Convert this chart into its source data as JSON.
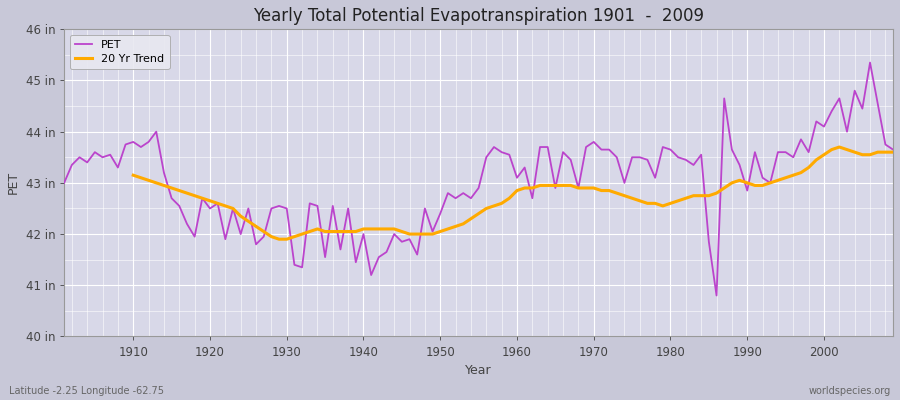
{
  "title": "Yearly Total Potential Evapotranspiration 1901  -  2009",
  "xlabel": "Year",
  "ylabel": "PET",
  "footnote_left": "Latitude -2.25 Longitude -62.75",
  "footnote_right": "worldspecies.org",
  "ylim": [
    40,
    46
  ],
  "yticks": [
    40,
    41,
    42,
    43,
    44,
    45,
    46
  ],
  "ytick_labels": [
    "40 in",
    "41 in",
    "42 in",
    "43 in",
    "44 in",
    "45 in",
    "46 in"
  ],
  "xlim": [
    1901,
    2009
  ],
  "xticks": [
    1910,
    1920,
    1930,
    1940,
    1950,
    1960,
    1970,
    1980,
    1990,
    2000
  ],
  "pet_color": "#bb44cc",
  "trend_color": "#ffaa00",
  "fig_bg_color": "#c8c8d8",
  "plot_bg_color": "#d8d8e8",
  "grid_color": "#ffffff",
  "legend_bg": "#e8e8f0",
  "pet_linewidth": 1.3,
  "trend_linewidth": 2.2,
  "years": [
    1901,
    1902,
    1903,
    1904,
    1905,
    1906,
    1907,
    1908,
    1909,
    1910,
    1911,
    1912,
    1913,
    1914,
    1915,
    1916,
    1917,
    1918,
    1919,
    1920,
    1921,
    1922,
    1923,
    1924,
    1925,
    1926,
    1927,
    1928,
    1929,
    1930,
    1931,
    1932,
    1933,
    1934,
    1935,
    1936,
    1937,
    1938,
    1939,
    1940,
    1941,
    1942,
    1943,
    1944,
    1945,
    1946,
    1947,
    1948,
    1949,
    1950,
    1951,
    1952,
    1953,
    1954,
    1955,
    1956,
    1957,
    1958,
    1959,
    1960,
    1961,
    1962,
    1963,
    1964,
    1965,
    1966,
    1967,
    1968,
    1969,
    1970,
    1971,
    1972,
    1973,
    1974,
    1975,
    1976,
    1977,
    1978,
    1979,
    1980,
    1981,
    1982,
    1983,
    1984,
    1985,
    1986,
    1987,
    1988,
    1989,
    1990,
    1991,
    1992,
    1993,
    1994,
    1995,
    1996,
    1997,
    1998,
    1999,
    2000,
    2001,
    2002,
    2003,
    2004,
    2005,
    2006,
    2007,
    2008,
    2009
  ],
  "pet_values": [
    43.0,
    43.35,
    43.5,
    43.4,
    43.6,
    43.5,
    43.55,
    43.3,
    43.75,
    43.8,
    43.7,
    43.8,
    44.0,
    43.2,
    42.7,
    42.55,
    42.2,
    41.95,
    42.7,
    42.5,
    42.6,
    41.9,
    42.5,
    42.0,
    42.5,
    41.8,
    41.95,
    42.5,
    42.55,
    42.5,
    41.4,
    41.35,
    42.6,
    42.55,
    41.55,
    42.55,
    41.7,
    42.5,
    41.45,
    42.0,
    41.2,
    41.55,
    41.65,
    42.0,
    41.85,
    41.9,
    41.6,
    42.5,
    42.05,
    42.4,
    42.8,
    42.7,
    42.8,
    42.7,
    42.9,
    43.5,
    43.7,
    43.6,
    43.55,
    43.1,
    43.3,
    42.7,
    43.7,
    43.7,
    42.9,
    43.6,
    43.45,
    42.9,
    43.7,
    43.8,
    43.65,
    43.65,
    43.5,
    43.0,
    43.5,
    43.5,
    43.45,
    43.1,
    43.7,
    43.65,
    43.5,
    43.45,
    43.35,
    43.55,
    41.85,
    40.8,
    44.65,
    43.65,
    43.35,
    42.85,
    43.6,
    43.1,
    43.0,
    43.6,
    43.6,
    43.5,
    43.85,
    43.6,
    44.2,
    44.1,
    44.4,
    44.65,
    44.0,
    44.8,
    44.45,
    45.35,
    44.55,
    43.75,
    43.65
  ],
  "trend_years": [
    1910,
    1911,
    1912,
    1913,
    1914,
    1915,
    1916,
    1917,
    1918,
    1919,
    1920,
    1921,
    1922,
    1923,
    1924,
    1925,
    1926,
    1927,
    1928,
    1929,
    1930,
    1931,
    1932,
    1933,
    1934,
    1935,
    1936,
    1937,
    1938,
    1939,
    1940,
    1941,
    1942,
    1943,
    1944,
    1945,
    1946,
    1947,
    1948,
    1949,
    1950,
    1951,
    1952,
    1953,
    1954,
    1955,
    1956,
    1957,
    1958,
    1959,
    1960,
    1961,
    1962,
    1963,
    1964,
    1965,
    1966,
    1967,
    1968,
    1969,
    1970,
    1971,
    1972,
    1973,
    1974,
    1975,
    1976,
    1977,
    1978,
    1979,
    1980,
    1981,
    1982,
    1983,
    1984,
    1985,
    1986,
    1987,
    1988,
    1989,
    1991,
    1992,
    1993,
    1994,
    1995,
    1996,
    1997,
    1998,
    1999,
    2000,
    2001,
    2002,
    2003,
    2004,
    2005,
    2006,
    2007,
    2008,
    2009
  ],
  "trend_values": [
    43.15,
    43.1,
    43.05,
    43.0,
    42.95,
    42.9,
    42.85,
    42.8,
    42.75,
    42.7,
    42.65,
    42.6,
    42.55,
    42.5,
    42.35,
    42.25,
    42.15,
    42.05,
    41.95,
    41.9,
    41.9,
    41.95,
    42.0,
    42.05,
    42.1,
    42.05,
    42.05,
    42.05,
    42.05,
    42.05,
    42.1,
    42.1,
    42.1,
    42.1,
    42.1,
    42.05,
    42.0,
    42.0,
    42.0,
    42.0,
    42.05,
    42.1,
    42.15,
    42.2,
    42.3,
    42.4,
    42.5,
    42.55,
    42.6,
    42.7,
    42.85,
    42.9,
    42.9,
    42.95,
    42.95,
    42.95,
    42.95,
    42.95,
    42.9,
    42.9,
    42.9,
    42.85,
    42.85,
    42.8,
    42.75,
    42.7,
    42.65,
    42.6,
    42.6,
    42.55,
    42.6,
    42.65,
    42.7,
    42.75,
    42.75,
    42.75,
    42.8,
    42.9,
    43.0,
    43.05,
    42.95,
    42.95,
    43.0,
    43.05,
    43.1,
    43.15,
    43.2,
    43.3,
    43.45,
    43.55,
    43.65,
    43.7,
    43.65,
    43.6,
    43.55,
    43.55,
    43.6,
    43.6,
    43.6
  ]
}
